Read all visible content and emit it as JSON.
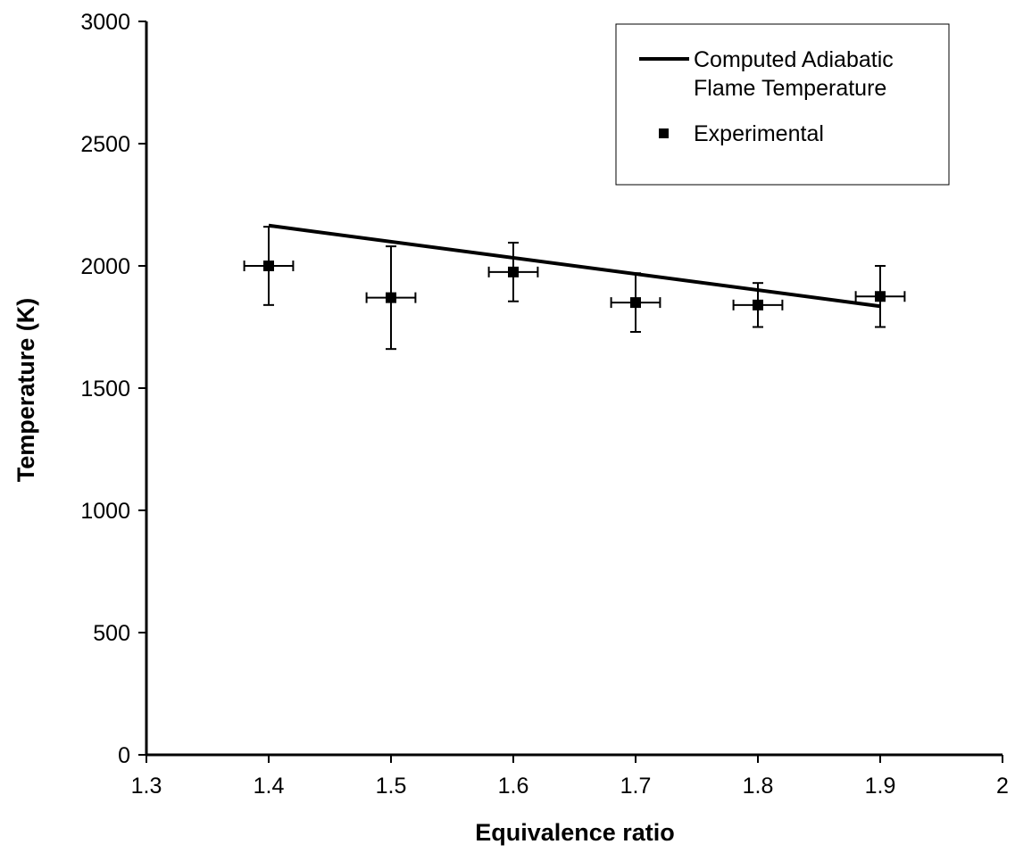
{
  "chart_data": {
    "type": "scatter",
    "title": "",
    "xlabel": "Equivalence ratio",
    "ylabel": "Temperature (K)",
    "xlim": [
      1.3,
      2.0
    ],
    "ylim": [
      0,
      3000
    ],
    "x_ticks": [
      "1.3",
      "1.4",
      "1.5",
      "1.6",
      "1.7",
      "1.8",
      "1.9",
      "2"
    ],
    "y_ticks": [
      "0",
      "500",
      "1000",
      "1500",
      "2000",
      "2500",
      "3000"
    ],
    "grid": false,
    "legend_position": "top-right",
    "series": [
      {
        "name": "Computed Adiabatic Flame Temperature",
        "name_lines": [
          "Computed Adiabatic",
          "Flame Temperature"
        ],
        "kind": "line",
        "color": "#000000",
        "x": [
          1.4,
          1.9
        ],
        "y": [
          2165,
          1835
        ]
      },
      {
        "name": "Experimental",
        "kind": "points",
        "marker": "square",
        "color": "#000000",
        "x": [
          1.4,
          1.5,
          1.6,
          1.7,
          1.8,
          1.9
        ],
        "y": [
          2000,
          1870,
          1975,
          1850,
          1840,
          1875
        ],
        "y_err_low": [
          160,
          210,
          120,
          120,
          90,
          125
        ],
        "y_err_high": [
          160,
          210,
          120,
          120,
          90,
          125
        ],
        "x_err": [
          0.02,
          0.02,
          0.02,
          0.02,
          0.02,
          0.02
        ]
      }
    ]
  }
}
